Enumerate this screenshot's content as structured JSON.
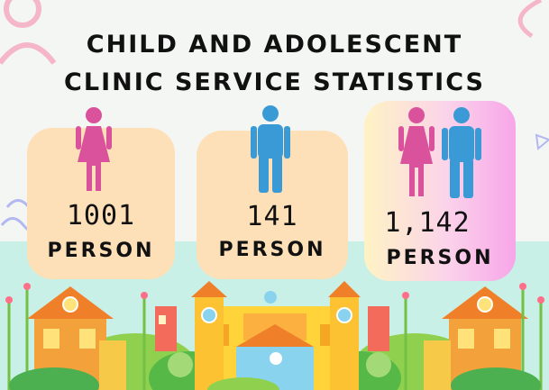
{
  "title": {
    "line1": "CHILD AND ADOLESCENT",
    "line2": "CLINIC SERVICE STATISTICS"
  },
  "cards": [
    {
      "icon": "female-person-icon",
      "value": "1001",
      "unit": "PERSON"
    },
    {
      "icon": "male-person-icon",
      "value": "141",
      "unit": "PERSON"
    },
    {
      "icon": "female-male-couple-icon",
      "value": "1,142",
      "unit": "PERSON"
    }
  ],
  "colors": {
    "female": "#d9529b",
    "male": "#3a9ad6",
    "card": "#fde0b8",
    "background": "#f4f6f4",
    "mint": "#c9f0e6"
  }
}
